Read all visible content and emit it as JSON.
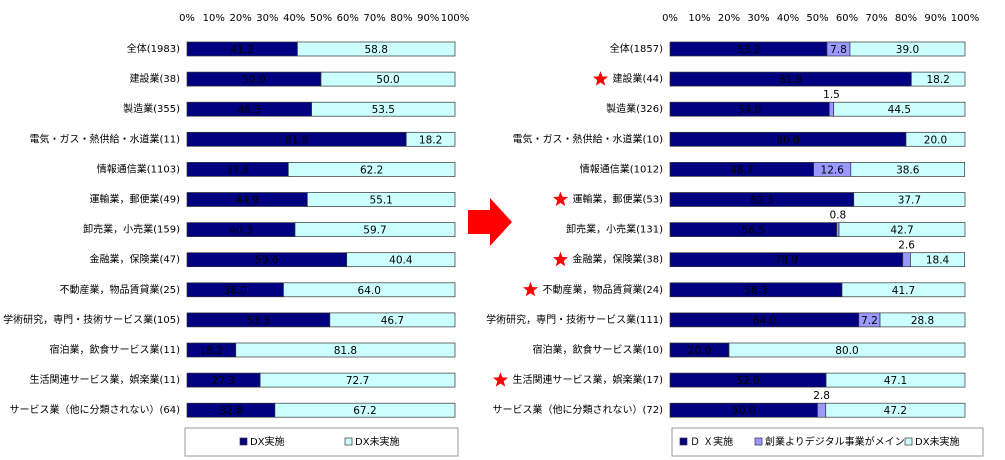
{
  "chart_data": [
    {
      "type": "stacked-bar",
      "categories": [
        "全体(1983)",
        "建設業(38)",
        "製造業(355)",
        "電気・ガス・熱供給・水道業(11)",
        "情報通信業(1103)",
        "運輸業，郵便業(49)",
        "卸売業，小売業(159)",
        "金融業，保険業(47)",
        "不動産業，物品賃貸業(25)",
        "学術研究，専門・技術サービス業(105)",
        "宿泊業，飲食サービス業(11)",
        "生活関連サービス業，娯楽業(11)",
        "サービス業（他に分類されない）(64)"
      ],
      "series": [
        {
          "name": "DX実施",
          "color": "#000080",
          "values": [
            41.2,
            50.0,
            46.5,
            81.8,
            37.8,
            44.9,
            40.3,
            59.6,
            36.0,
            53.3,
            18.2,
            27.3,
            32.8
          ],
          "value_labels": [
            "41.2",
            "50.0",
            "46.5",
            "81.8",
            "37.8",
            "44.9",
            "40.3",
            "59.6",
            "36.0",
            "53.3",
            "18.2",
            "27.3",
            "32.8"
          ]
        },
        {
          "name": "DX未実施",
          "color": "#ccffff",
          "values": [
            58.8,
            50.0,
            53.5,
            18.2,
            62.2,
            55.1,
            59.7,
            40.4,
            64.0,
            46.7,
            81.8,
            72.7,
            67.2
          ],
          "value_labels": [
            "58.8",
            "50.0",
            "53.5",
            "18.2",
            "62.2",
            "55.1",
            "59.7",
            "40.4",
            "64.0",
            "46.7",
            "81.8",
            "72.7",
            "67.2"
          ]
        }
      ],
      "xlim": [
        0,
        100
      ],
      "xticks": [
        {
          "value": 0,
          "label": "0%"
        },
        {
          "value": 10,
          "label": "10%"
        },
        {
          "value": 20,
          "label": "20%"
        },
        {
          "value": 30,
          "label": "30%"
        },
        {
          "value": 40,
          "label": "40%"
        },
        {
          "value": 50,
          "label": "50%"
        },
        {
          "value": 60,
          "label": "60%"
        },
        {
          "value": 70,
          "label": "70%"
        },
        {
          "value": 80,
          "label": "80%"
        },
        {
          "value": 90,
          "label": "90%"
        },
        {
          "value": 100,
          "label": "100%"
        }
      ]
    },
    {
      "type": "stacked-bar",
      "categories": [
        "全体(1857)",
        "建設業(44)",
        "製造業(326)",
        "電気・ガス・熱供給・水道業(10)",
        "情報通信業(1012)",
        "運輸業，郵便業(53)",
        "卸売業，小売業(131)",
        "金融業，保険業(38)",
        "不動産業，物品賃貸業(24)",
        "学術研究，専門・技術サービス業(111)",
        "宿泊業，飲食サービス業(10)",
        "生活関連サービス業，娯楽業(17)",
        "サービス業（他に分類されない）(72)"
      ],
      "series": [
        {
          "name": "Ｄ Ｘ実施",
          "color": "#000080",
          "values": [
            53.2,
            81.8,
            54.0,
            80.0,
            48.7,
            62.3,
            56.5,
            78.9,
            58.3,
            64.0,
            20.0,
            52.9,
            50.0
          ],
          "value_labels": [
            "53.2",
            "81.8",
            "54.0",
            "80.0",
            "48.7",
            "62.3",
            "56.5",
            "78.9",
            "58.3",
            "64.0",
            "20.0",
            "52.9",
            "50.0"
          ]
        },
        {
          "name": "創業よりデジタル事業がメイン",
          "color": "#9999ff",
          "values": [
            7.8,
            null,
            1.5,
            null,
            12.6,
            null,
            0.8,
            2.6,
            null,
            7.2,
            null,
            null,
            2.8
          ],
          "value_labels": [
            "7.8",
            null,
            "1.5",
            null,
            "12.6",
            null,
            "0.8",
            "2.6",
            null,
            "7.2",
            null,
            null,
            "2.8"
          ]
        },
        {
          "name": "DX未実施",
          "color": "#ccffff",
          "values": [
            39.0,
            18.2,
            44.5,
            20.0,
            38.6,
            37.7,
            42.7,
            18.4,
            41.7,
            28.8,
            80.0,
            47.1,
            47.2
          ],
          "value_labels": [
            "39.0",
            "18.2",
            "44.5",
            "20.0",
            "38.6",
            "37.7",
            "42.7",
            "18.4",
            "41.7",
            "28.8",
            "80.0",
            "47.1",
            "47.2"
          ]
        }
      ],
      "xlim": [
        0,
        100
      ],
      "xticks": [
        {
          "value": 0,
          "label": "0%"
        },
        {
          "value": 10,
          "label": "10%"
        },
        {
          "value": 20,
          "label": "20%"
        },
        {
          "value": 30,
          "label": "30%"
        },
        {
          "value": 40,
          "label": "40%"
        },
        {
          "value": 50,
          "label": "50%"
        },
        {
          "value": 60,
          "label": "60%"
        },
        {
          "value": 70,
          "label": "70%"
        },
        {
          "value": 80,
          "label": "80%"
        },
        {
          "value": 90,
          "label": "90%"
        },
        {
          "value": 100,
          "label": "100%"
        }
      ]
    }
  ]
}
